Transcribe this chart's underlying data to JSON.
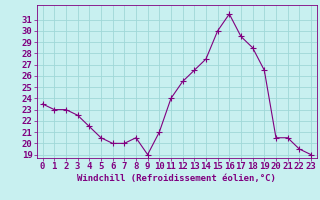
{
  "x": [
    0,
    1,
    2,
    3,
    4,
    5,
    6,
    7,
    8,
    9,
    10,
    11,
    12,
    13,
    14,
    15,
    16,
    17,
    18,
    19,
    20,
    21,
    22,
    23
  ],
  "y": [
    23.5,
    23.0,
    23.0,
    22.5,
    21.5,
    20.5,
    20.0,
    20.0,
    20.5,
    19.0,
    21.0,
    24.0,
    25.5,
    26.5,
    27.5,
    30.0,
    31.5,
    29.5,
    28.5,
    26.5,
    20.5,
    20.5,
    19.5,
    19.0
  ],
  "line_color": "#800080",
  "marker": "+",
  "marker_size": 4,
  "bg_color": "#c8f0f0",
  "grid_color": "#a0d8d8",
  "xlabel": "Windchill (Refroidissement éolien,°C)",
  "ylabel": "",
  "title": "",
  "xlim": [
    -0.5,
    23.5
  ],
  "ylim": [
    19,
    32
  ],
  "yticks": [
    19,
    20,
    21,
    22,
    23,
    24,
    25,
    26,
    27,
    28,
    29,
    30,
    31
  ],
  "xticks": [
    0,
    1,
    2,
    3,
    4,
    5,
    6,
    7,
    8,
    9,
    10,
    11,
    12,
    13,
    14,
    15,
    16,
    17,
    18,
    19,
    20,
    21,
    22,
    23
  ],
  "tick_color": "#800080",
  "label_color": "#800080",
  "axis_color": "#800080",
  "font_size": 6.5
}
